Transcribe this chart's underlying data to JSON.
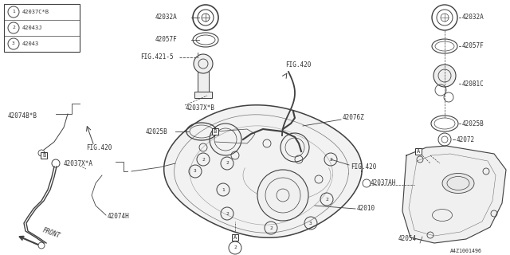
{
  "bg_color": "#f5f5f0",
  "line_color": "#404040",
  "text_color": "#303030",
  "legend_items": [
    {
      "num": "1",
      "label": "42037C*B"
    },
    {
      "num": "2",
      "label": "42043J"
    },
    {
      "num": "3",
      "label": "42043"
    }
  ]
}
